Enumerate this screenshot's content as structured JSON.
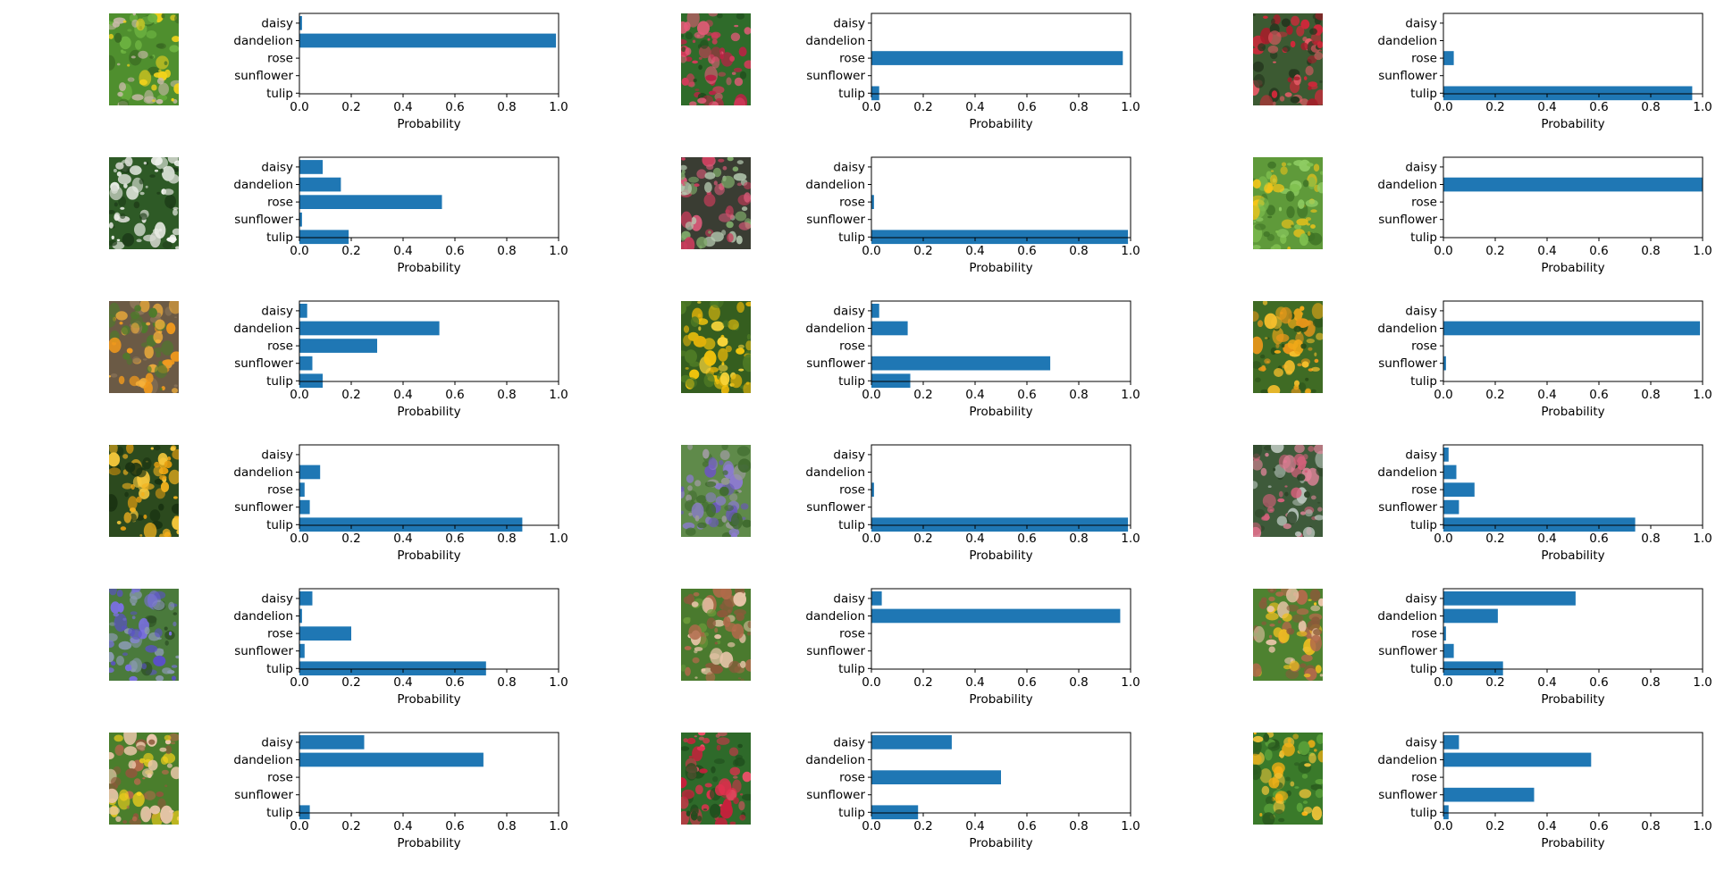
{
  "figure": {
    "bar_color": "#1f77b4",
    "categories": [
      "daisy",
      "dandelion",
      "rose",
      "sunflower",
      "tulip"
    ],
    "xticks": [
      "0.0",
      "0.2",
      "0.4",
      "0.6",
      "0.8",
      "1.0"
    ],
    "xlabel": "Probability"
  },
  "chart_data": [
    {
      "type": "bar",
      "orientation": "horizontal",
      "thumbnail": "dandelion-photo",
      "categories": [
        "daisy",
        "dandelion",
        "rose",
        "sunflower",
        "tulip"
      ],
      "values": [
        0.01,
        0.99,
        0.0,
        0.0,
        0.0
      ],
      "xlim": [
        0,
        1
      ],
      "xlabel": "Probability",
      "ylabel": "",
      "title": ""
    },
    {
      "type": "bar",
      "orientation": "horizontal",
      "thumbnail": "rose-bush-photo",
      "categories": [
        "daisy",
        "dandelion",
        "rose",
        "sunflower",
        "tulip"
      ],
      "values": [
        0.0,
        0.0,
        0.97,
        0.0,
        0.03
      ],
      "xlim": [
        0,
        1
      ],
      "xlabel": "Probability",
      "ylabel": "",
      "title": ""
    },
    {
      "type": "bar",
      "orientation": "horizontal",
      "thumbnail": "red-tulip-photo",
      "categories": [
        "daisy",
        "dandelion",
        "rose",
        "sunflower",
        "tulip"
      ],
      "values": [
        0.0,
        0.0,
        0.04,
        0.0,
        0.96
      ],
      "xlim": [
        0,
        1
      ],
      "xlabel": "Probability",
      "ylabel": "",
      "title": ""
    },
    {
      "type": "bar",
      "orientation": "horizontal",
      "thumbnail": "white-flowers-photo",
      "categories": [
        "daisy",
        "dandelion",
        "rose",
        "sunflower",
        "tulip"
      ],
      "values": [
        0.09,
        0.16,
        0.55,
        0.01,
        0.19
      ],
      "xlim": [
        0,
        1
      ],
      "xlabel": "Probability",
      "ylabel": "",
      "title": ""
    },
    {
      "type": "bar",
      "orientation": "horizontal",
      "thumbnail": "pink-tulips-photo",
      "categories": [
        "daisy",
        "dandelion",
        "rose",
        "sunflower",
        "tulip"
      ],
      "values": [
        0.0,
        0.0,
        0.01,
        0.0,
        0.99
      ],
      "xlim": [
        0,
        1
      ],
      "xlabel": "Probability",
      "ylabel": "",
      "title": ""
    },
    {
      "type": "bar",
      "orientation": "horizontal",
      "thumbnail": "dandelion-grass-photo",
      "categories": [
        "daisy",
        "dandelion",
        "rose",
        "sunflower",
        "tulip"
      ],
      "values": [
        0.0,
        1.0,
        0.0,
        0.0,
        0.0
      ],
      "xlim": [
        0,
        1
      ],
      "xlabel": "Probability",
      "ylabel": "",
      "title": ""
    },
    {
      "type": "bar",
      "orientation": "horizontal",
      "thumbnail": "orange-marigold-photo",
      "categories": [
        "daisy",
        "dandelion",
        "rose",
        "sunflower",
        "tulip"
      ],
      "values": [
        0.03,
        0.54,
        0.3,
        0.05,
        0.09
      ],
      "xlim": [
        0,
        1
      ],
      "xlabel": "Probability",
      "ylabel": "",
      "title": ""
    },
    {
      "type": "bar",
      "orientation": "horizontal",
      "thumbnail": "yellow-daisies-photo",
      "categories": [
        "daisy",
        "dandelion",
        "rose",
        "sunflower",
        "tulip"
      ],
      "values": [
        0.03,
        0.14,
        0.0,
        0.69,
        0.15
      ],
      "xlim": [
        0,
        1
      ],
      "xlabel": "Probability",
      "ylabel": "",
      "title": ""
    },
    {
      "type": "bar",
      "orientation": "horizontal",
      "thumbnail": "yellow-chrysanthemum-photo",
      "categories": [
        "daisy",
        "dandelion",
        "rose",
        "sunflower",
        "tulip"
      ],
      "values": [
        0.0,
        0.99,
        0.0,
        0.01,
        0.0
      ],
      "xlim": [
        0,
        1
      ],
      "xlabel": "Probability",
      "ylabel": "",
      "title": ""
    },
    {
      "type": "bar",
      "orientation": "horizontal",
      "thumbnail": "yellow-tulips-photo",
      "categories": [
        "daisy",
        "dandelion",
        "rose",
        "sunflower",
        "tulip"
      ],
      "values": [
        0.0,
        0.08,
        0.02,
        0.04,
        0.86
      ],
      "xlim": [
        0,
        1
      ],
      "xlabel": "Probability",
      "ylabel": "",
      "title": ""
    },
    {
      "type": "bar",
      "orientation": "horizontal",
      "thumbnail": "purple-irises-photo",
      "categories": [
        "daisy",
        "dandelion",
        "rose",
        "sunflower",
        "tulip"
      ],
      "values": [
        0.0,
        0.0,
        0.01,
        0.0,
        0.99
      ],
      "xlim": [
        0,
        1
      ],
      "xlabel": "Probability",
      "ylabel": "",
      "title": ""
    },
    {
      "type": "bar",
      "orientation": "horizontal",
      "thumbnail": "pink-lupins-photo",
      "categories": [
        "daisy",
        "dandelion",
        "rose",
        "sunflower",
        "tulip"
      ],
      "values": [
        0.02,
        0.05,
        0.12,
        0.06,
        0.74
      ],
      "xlim": [
        0,
        1
      ],
      "xlabel": "Probability",
      "ylabel": "",
      "title": ""
    },
    {
      "type": "bar",
      "orientation": "horizontal",
      "thumbnail": "blue-iris-photo",
      "categories": [
        "daisy",
        "dandelion",
        "rose",
        "sunflower",
        "tulip"
      ],
      "values": [
        0.05,
        0.01,
        0.2,
        0.02,
        0.72
      ],
      "xlim": [
        0,
        1
      ],
      "xlabel": "Probability",
      "ylabel": "",
      "title": ""
    },
    {
      "type": "bar",
      "orientation": "horizontal",
      "thumbnail": "hand-white-flower-photo",
      "categories": [
        "daisy",
        "dandelion",
        "rose",
        "sunflower",
        "tulip"
      ],
      "values": [
        0.04,
        0.96,
        0.0,
        0.0,
        0.0
      ],
      "xlim": [
        0,
        1
      ],
      "xlabel": "Probability",
      "ylabel": "",
      "title": ""
    },
    {
      "type": "bar",
      "orientation": "horizontal",
      "thumbnail": "hand-yellow-flower-photo",
      "categories": [
        "daisy",
        "dandelion",
        "rose",
        "sunflower",
        "tulip"
      ],
      "values": [
        0.51,
        0.21,
        0.01,
        0.04,
        0.23
      ],
      "xlim": [
        0,
        1
      ],
      "xlabel": "Probability",
      "ylabel": "",
      "title": ""
    },
    {
      "type": "bar",
      "orientation": "horizontal",
      "thumbnail": "hand-dandelion-photo",
      "categories": [
        "daisy",
        "dandelion",
        "rose",
        "sunflower",
        "tulip"
      ],
      "values": [
        0.25,
        0.71,
        0.0,
        0.0,
        0.04
      ],
      "xlim": [
        0,
        1
      ],
      "xlabel": "Probability",
      "ylabel": "",
      "title": ""
    },
    {
      "type": "bar",
      "orientation": "horizontal",
      "thumbnail": "red-geranium-photo",
      "categories": [
        "daisy",
        "dandelion",
        "rose",
        "sunflower",
        "tulip"
      ],
      "values": [
        0.31,
        0.0,
        0.5,
        0.0,
        0.18
      ],
      "xlim": [
        0,
        1
      ],
      "xlabel": "Probability",
      "ylabel": "",
      "title": ""
    },
    {
      "type": "bar",
      "orientation": "horizontal",
      "thumbnail": "yellow-wildflowers-photo",
      "categories": [
        "daisy",
        "dandelion",
        "rose",
        "sunflower",
        "tulip"
      ],
      "values": [
        0.06,
        0.57,
        0.0,
        0.35,
        0.02
      ],
      "xlim": [
        0,
        1
      ],
      "xlabel": "Probability",
      "ylabel": "",
      "title": ""
    }
  ],
  "thumbnails": {
    "dandelion-photo": {
      "base": "#4f8f2e",
      "accents": [
        "#6db341",
        "#3a6b22",
        "#f2d21b",
        "#c8b9a8"
      ],
      "seed": 3
    },
    "rose-bush-photo": {
      "base": "#2f6b2a",
      "accents": [
        "#d23a5a",
        "#e45a78",
        "#1f4d1c",
        "#b82444"
      ],
      "seed": 7
    },
    "red-tulip-photo": {
      "base": "#3c5a32",
      "accents": [
        "#d0283a",
        "#e85a66",
        "#26381f",
        "#a81c2a"
      ],
      "seed": 11
    },
    "white-flowers-photo": {
      "base": "#2e5a26",
      "accents": [
        "#e8ebe4",
        "#d4d8cf",
        "#1e3d19",
        "#f4f6f1"
      ],
      "seed": 13
    },
    "pink-tulips-photo": {
      "base": "#3a3d33",
      "accents": [
        "#d85a78",
        "#7faa6a",
        "#b5c9b0",
        "#c93d5c"
      ],
      "seed": 17
    },
    "dandelion-grass-photo": {
      "base": "#5f9a3a",
      "accents": [
        "#7fbf4f",
        "#3f7326",
        "#f5c518",
        "#8fcc63"
      ],
      "seed": 19
    },
    "orange-marigold-photo": {
      "base": "#6b5a45",
      "accents": [
        "#f39a1b",
        "#4e7a2c",
        "#8a7458",
        "#f7b23a"
      ],
      "seed": 23
    },
    "yellow-daisies-photo": {
      "base": "#355e1f",
      "accents": [
        "#f2c40c",
        "#e0b10a",
        "#4d7a25",
        "#f8d53a"
      ],
      "seed": 29
    },
    "yellow-chrysanthemum-photo": {
      "base": "#3f6b24",
      "accents": [
        "#f0a818",
        "#f6bf2c",
        "#2a4f18",
        "#e8961a"
      ],
      "seed": 31
    },
    "yellow-tulips-photo": {
      "base": "#2c4a1e",
      "accents": [
        "#f3b21e",
        "#f8c93c",
        "#1a3312",
        "#e8a010"
      ],
      "seed": 37
    },
    "purple-irises-photo": {
      "base": "#5f8a4a",
      "accents": [
        "#6a5ab8",
        "#8c7bd0",
        "#9a9a9a",
        "#3f6b2e"
      ],
      "seed": 41
    },
    "pink-lupins-photo": {
      "base": "#3e5a3a",
      "accents": [
        "#d2607a",
        "#b8c4bc",
        "#2c4428",
        "#e0849a"
      ],
      "seed": 43
    },
    "blue-iris-photo": {
      "base": "#4a7a3c",
      "accents": [
        "#5a50c8",
        "#8a9ab0",
        "#2f5226",
        "#7a70e0"
      ],
      "seed": 47
    },
    "hand-white-flower-photo": {
      "base": "#4a7a2e",
      "accents": [
        "#b06a4a",
        "#e8c4a8",
        "#6a9a3a",
        "#8a5a3a"
      ],
      "seed": 53
    },
    "hand-yellow-flower-photo": {
      "base": "#4e8230",
      "accents": [
        "#b06a4a",
        "#e8c4a8",
        "#f2c020",
        "#8a5a3a"
      ],
      "seed": 59
    },
    "hand-dandelion-photo": {
      "base": "#4a7e2c",
      "accents": [
        "#b06a4a",
        "#ecc8ac",
        "#f5d21c",
        "#8a5a3a"
      ],
      "seed": 61
    },
    "red-geranium-photo": {
      "base": "#2e6a2a",
      "accents": [
        "#e0304e",
        "#f0506a",
        "#1f4d1c",
        "#c8203c"
      ],
      "seed": 67
    },
    "yellow-wildflowers-photo": {
      "base": "#3a7a2a",
      "accents": [
        "#f5b014",
        "#5aa03a",
        "#2a5a1e",
        "#f8c83a"
      ],
      "seed": 71
    }
  }
}
